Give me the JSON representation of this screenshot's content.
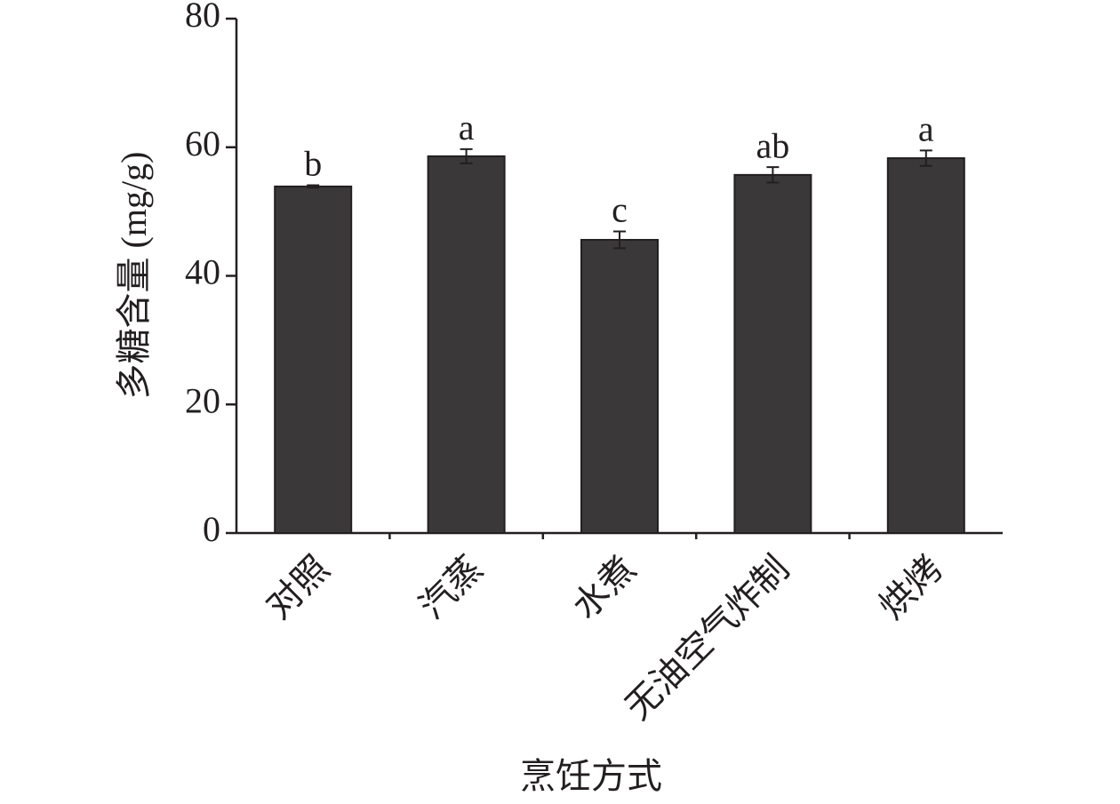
{
  "chart_data": {
    "type": "bar",
    "x_label": "烹饪方式",
    "y_label": "多糖含量 (mg/g)",
    "categories": [
      "对照",
      "汽蒸",
      "水煮",
      "无油空气炸制",
      "烘烤"
    ],
    "values": [
      53.9,
      58.6,
      45.6,
      55.7,
      58.3
    ],
    "errors": [
      0.2,
      1.1,
      1.3,
      1.2,
      1.2
    ],
    "annotations": [
      "b",
      "a",
      "c",
      "ab",
      "a"
    ],
    "color": "#3a3839",
    "ylim": [
      0,
      80
    ],
    "yticks": [
      0,
      20,
      40,
      60,
      80
    ],
    "grid": false
  }
}
